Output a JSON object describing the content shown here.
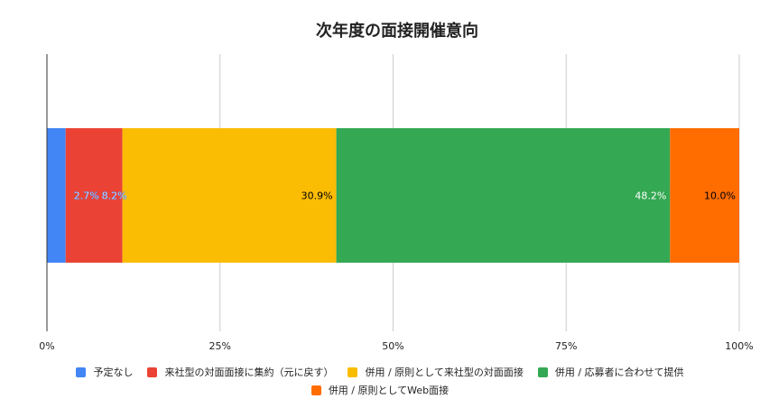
{
  "chart_data": {
    "type": "bar",
    "orientation": "horizontal",
    "stacked": true,
    "normalized_percent": true,
    "title": "次年度の面接開催意向",
    "categories": [
      ""
    ],
    "x_ticks": [
      "0%",
      "25%",
      "50%",
      "75%",
      "100%"
    ],
    "xlim": [
      0,
      100
    ],
    "grid": true,
    "legend_position": "bottom",
    "series": [
      {
        "name": "予定なし",
        "values": [
          2.7
        ],
        "color": "#4285f4",
        "label": "2.7%",
        "label_color": "#ffffff"
      },
      {
        "name": "来社型の対面面接に集約（元に戻す）",
        "values": [
          8.2
        ],
        "color": "#ea4335",
        "label": "8.2%",
        "label_color": "#ffffff"
      },
      {
        "name": "併用 / 原則として来社型の対面面接",
        "values": [
          30.9
        ],
        "color": "#fbbc04",
        "label": "30.9%",
        "label_color": "#000000"
      },
      {
        "name": "併用 / 応募者に合わせて提供",
        "values": [
          48.2
        ],
        "color": "#34a853",
        "label": "48.2%",
        "label_color": "#ffffff"
      },
      {
        "name": "併用 / 原則としてWeb面接",
        "values": [
          10.0
        ],
        "color": "#ff6d01",
        "label": "10.0%",
        "label_color": "#000000"
      }
    ]
  }
}
